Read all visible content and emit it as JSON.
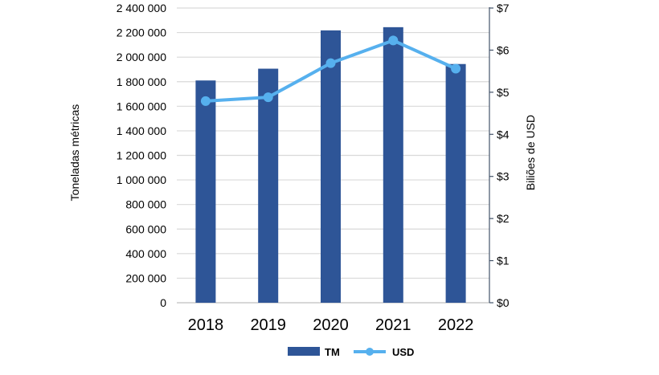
{
  "chart_data": {
    "type": "bar+line",
    "categories": [
      "2018",
      "2019",
      "2020",
      "2021",
      "2022"
    ],
    "series": [
      {
        "name": "TM",
        "type": "bar",
        "axis": "left",
        "color": "#2e5597",
        "values": [
          1810000,
          1906000,
          2218000,
          2244000,
          1944000
        ]
      },
      {
        "name": "USD",
        "type": "line",
        "axis": "right",
        "color": "#56b0ee",
        "values": [
          4.79,
          4.88,
          5.69,
          6.23,
          5.56
        ]
      }
    ],
    "ylabel": "Toneladas métricas",
    "y2label": "Biliões de USD",
    "ylim": [
      0,
      2400000
    ],
    "y2lim": [
      0,
      7
    ],
    "yticks": [
      "0",
      "200 000",
      "400 000",
      "600 000",
      "800 000",
      "1 000 000",
      "1 200 000",
      "1 400 000",
      "1 600 000",
      "1 800 000",
      "2 000 000",
      "2 200 000",
      "2 400 000"
    ],
    "y2ticks": [
      "$0",
      "$1",
      "$2",
      "$3",
      "$4",
      "$5",
      "$6",
      "$7"
    ],
    "grid": true,
    "legend": "bottom"
  }
}
